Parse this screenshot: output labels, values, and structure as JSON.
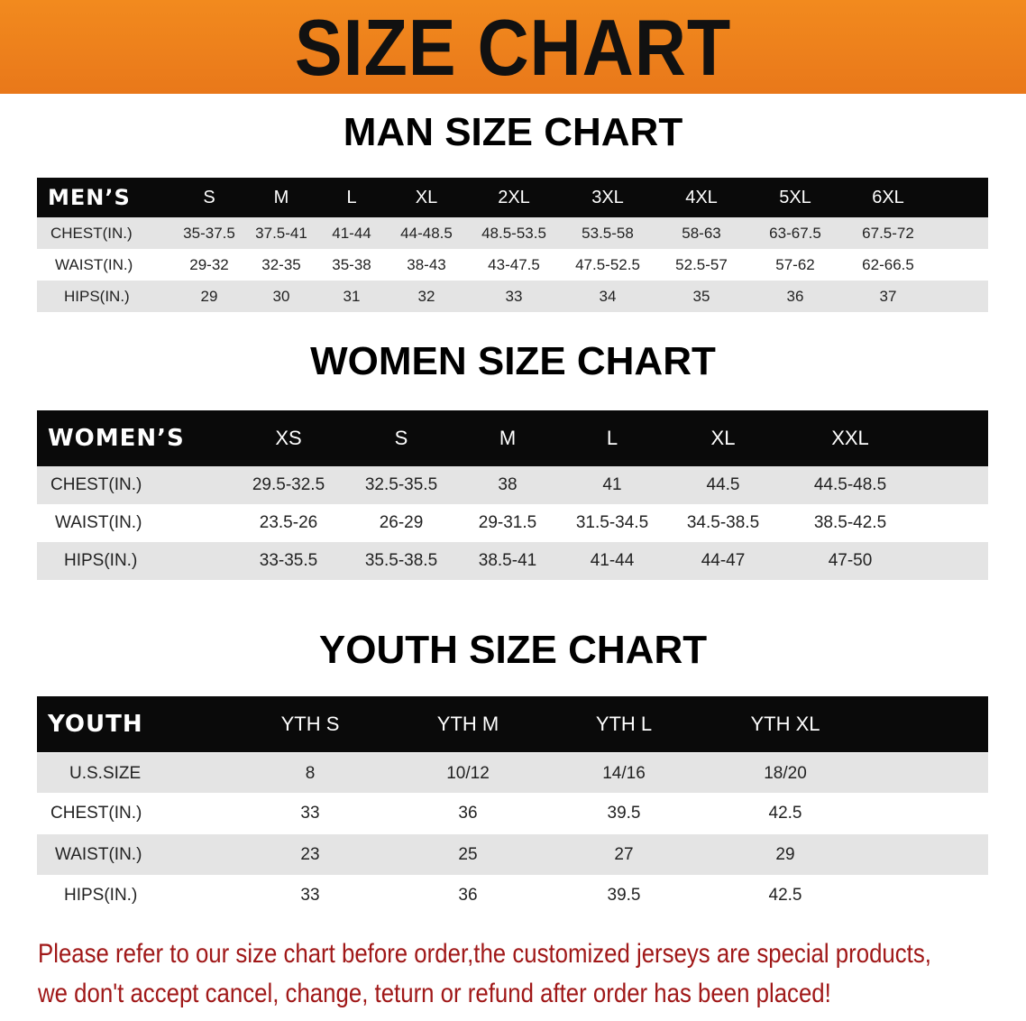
{
  "banner": {
    "title": "SIZE CHART",
    "color": "#ee821c"
  },
  "men": {
    "title": "MAN SIZE CHART",
    "header": "MEN’S",
    "sizes": [
      "S",
      "M",
      "L",
      "XL",
      "2XL",
      "3XL",
      "4XL",
      "5XL",
      "6XL"
    ],
    "rows": [
      {
        "label": "CHEST(IN.)",
        "values": [
          "35-37.5",
          "37.5-41",
          "41-44",
          "44-48.5",
          "48.5-53.5",
          "53.5-58",
          "58-63",
          "63-67.5",
          "67.5-72"
        ]
      },
      {
        "label": "WAIST(IN.)",
        "values": [
          "29-32",
          "32-35",
          "35-38",
          "38-43",
          "43-47.5",
          "47.5-52.5",
          "52.5-57",
          "57-62",
          "62-66.5"
        ]
      },
      {
        "label": "HIPS(IN.)",
        "values": [
          "29",
          "30",
          "31",
          "32",
          "33",
          "34",
          "35",
          "36",
          "37"
        ]
      }
    ]
  },
  "women": {
    "title": "WOMEN SIZE CHART",
    "header": "WOMEN’S",
    "sizes": [
      "XS",
      "S",
      "M",
      "L",
      "XL",
      "XXL"
    ],
    "rows": [
      {
        "label": "CHEST(IN.)",
        "values": [
          "29.5-32.5",
          "32.5-35.5",
          "38",
          "41",
          "44.5",
          "44.5-48.5"
        ]
      },
      {
        "label": "WAIST(IN.)",
        "values": [
          "23.5-26",
          "26-29",
          "29-31.5",
          "31.5-34.5",
          "34.5-38.5",
          "38.5-42.5"
        ]
      },
      {
        "label": "HIPS(IN.)",
        "values": [
          "33-35.5",
          "35.5-38.5",
          "38.5-41",
          "41-44",
          "44-47",
          "47-50"
        ]
      }
    ]
  },
  "youth": {
    "title": "YOUTH SIZE CHART",
    "header": "YOUTH",
    "sizes": [
      "YTH S",
      "YTH M",
      "YTH L",
      "YTH XL"
    ],
    "rows": [
      {
        "label": "U.S.SIZE",
        "values": [
          "8",
          "10/12",
          "14/16",
          "18/20"
        ]
      },
      {
        "label": "CHEST(IN.)",
        "values": [
          "33",
          "36",
          "39.5",
          "42.5"
        ]
      },
      {
        "label": "WAIST(IN.)",
        "values": [
          "23",
          "25",
          "27",
          "29"
        ]
      },
      {
        "label": "HIPS(IN.)",
        "values": [
          "33",
          "36",
          "39.5",
          "42.5"
        ]
      }
    ]
  },
  "notice": {
    "line1": "Please refer to our size chart before order,the customized jerseys are special products,",
    "line2": "we don't accept cancel, change, teturn or refund after order has been placed!",
    "color": "#a01818"
  }
}
